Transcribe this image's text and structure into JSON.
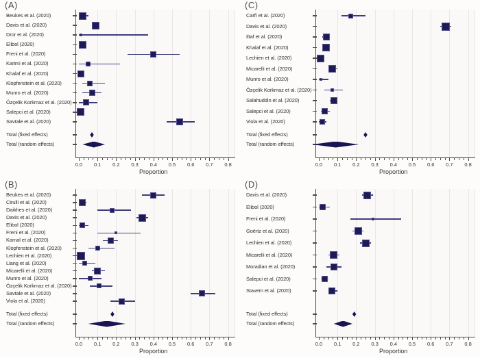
{
  "figure": {
    "kind": "meta-analysis forest plots",
    "panels_order": [
      "(A)",
      "(C)",
      "(B)",
      "(D)"
    ]
  },
  "colors": {
    "marker_fill": "#1d1a55",
    "marker_border": "#55528f",
    "ci_line": "#3e3c7c",
    "diamond": "#171552",
    "axis": "#4d4d4d",
    "gridline": "#e9e6e4",
    "plot_bg": "#fbf9f8",
    "page_bg": "#fdfcfb",
    "text": "#2e2e2e"
  },
  "chart_data": [
    {
      "type": "forest",
      "panel": "(A)",
      "xlabel": "Proportion",
      "xlim": [
        0,
        0.84
      ],
      "xtick_labels": [
        "0.0",
        "0.1",
        "0.2",
        "0.3",
        "0.4",
        "0.5",
        "0.6",
        "0.7",
        "0.8"
      ],
      "grid": true,
      "studies": [
        {
          "name": "Beukes et al. (2020)",
          "est": 0.02,
          "lo": 0.0,
          "hi": 0.05,
          "sq": 11
        },
        {
          "name": "Davis et al. (2020)",
          "est": 0.09,
          "lo": 0.07,
          "hi": 0.11,
          "sq": 11
        },
        {
          "name": "Dror et al. (2020)",
          "est": 0.01,
          "lo": 0.0,
          "hi": 0.37,
          "sq": 4
        },
        {
          "name": "Elibol (2020)",
          "est": 0.02,
          "lo": 0.0,
          "hi": 0.04,
          "sq": 11
        },
        {
          "name": "Freni et al. (2020)",
          "est": 0.4,
          "lo": 0.26,
          "hi": 0.54,
          "sq": 9
        },
        {
          "name": "Karimi et al. (2020)",
          "est": 0.05,
          "lo": 0.0,
          "hi": 0.22,
          "sq": 7
        },
        {
          "name": "Khalaf et al. (2020)",
          "est": 0.01,
          "lo": 0.0,
          "hi": 0.03,
          "sq": 10
        },
        {
          "name": "Klopfenstein et al. (2020)",
          "est": 0.06,
          "lo": 0.02,
          "hi": 0.14,
          "sq": 8
        },
        {
          "name": "Munro et al. (2020)",
          "est": 0.07,
          "lo": 0.02,
          "hi": 0.12,
          "sq": 9
        },
        {
          "name": "Özçelik Korkmaz et al. (2020)",
          "est": 0.04,
          "lo": 0.0,
          "hi": 0.1,
          "sq": 9
        },
        {
          "name": "Salepci et al. (2020)",
          "est": 0.01,
          "lo": 0.0,
          "hi": 0.03,
          "sq": 11
        },
        {
          "name": "Savtale et al. (2020)",
          "est": 0.54,
          "lo": 0.47,
          "hi": 0.62,
          "sq": 10
        }
      ],
      "totals": [
        {
          "name": "Total (fixed effects)",
          "est": 0.07,
          "lo": 0.06,
          "hi": 0.08
        },
        {
          "name": "Total (random effects)",
          "est": 0.08,
          "lo": 0.03,
          "hi": 0.15
        }
      ]
    },
    {
      "type": "forest",
      "panel": "(C)",
      "xlabel": "Proportion",
      "xlim": [
        0,
        0.84
      ],
      "xtick_labels": [
        "0.0",
        "0.1",
        "0.2",
        "0.3",
        "0.4",
        "0.5",
        "0.6",
        "0.7",
        "0.8"
      ],
      "grid": true,
      "studies": [
        {
          "name": "Carfì et al. (2020)",
          "est": 0.17,
          "lo": 0.12,
          "hi": 0.25,
          "sq": 7
        },
        {
          "name": "Davis et al. (2020)",
          "est": 0.68,
          "lo": 0.65,
          "hi": 0.71,
          "sq": 12
        },
        {
          "name": "Iltaf et al. (2020)",
          "est": 0.04,
          "lo": 0.02,
          "hi": 0.06,
          "sq": 10
        },
        {
          "name": "Khalaf et al. (2020)",
          "est": 0.04,
          "lo": 0.02,
          "hi": 0.06,
          "sq": 11
        },
        {
          "name": "Lechien et al. (2020)",
          "est": 0.01,
          "lo": 0.0,
          "hi": 0.03,
          "sq": 11
        },
        {
          "name": "Micarelli et al. (2020)",
          "est": 0.07,
          "lo": 0.05,
          "hi": 0.1,
          "sq": 11
        },
        {
          "name": "Munro et al. (2020)",
          "est": 0.01,
          "lo": 0.0,
          "hi": 0.05,
          "sq": 4
        },
        {
          "name": "Özçelik Korkmaz et al. (2020)",
          "est": 0.07,
          "lo": 0.03,
          "hi": 0.13,
          "sq": 5
        },
        {
          "name": "Salahuddin et al. (2020)",
          "est": 0.08,
          "lo": 0.06,
          "hi": 0.1,
          "sq": 10
        },
        {
          "name": "Salepci et al. (2020)",
          "est": 0.03,
          "lo": 0.01,
          "hi": 0.06,
          "sq": 9
        },
        {
          "name": "Viola et al. (2020)",
          "est": 0.02,
          "lo": 0.0,
          "hi": 0.04,
          "sq": 8
        }
      ],
      "totals": [
        {
          "name": "Total (fixed effects)",
          "est": 0.25,
          "lo": 0.24,
          "hi": 0.26
        },
        {
          "name": "Total (random effects)",
          "est": 0.09,
          "lo": 0.01,
          "hi": 0.26
        }
      ]
    },
    {
      "type": "forest",
      "panel": "(B)",
      "xlabel": "Proportion",
      "xlim": [
        0,
        0.84
      ],
      "xtick_labels": [
        "0.0",
        "0.1",
        "0.2",
        "0.3",
        "0.4",
        "0.5",
        "0.6",
        "0.7",
        "0.8"
      ],
      "grid": true,
      "studies": [
        {
          "name": "Beukes et al. (2020)",
          "est": 0.4,
          "lo": 0.34,
          "hi": 0.46,
          "sq": 9
        },
        {
          "name": "Cirulli et al. (2020)",
          "est": 0.02,
          "lo": 0.01,
          "hi": 0.04,
          "sq": 10
        },
        {
          "name": "Daikhes et al. (2020)",
          "est": 0.18,
          "lo": 0.1,
          "hi": 0.28,
          "sq": 7
        },
        {
          "name": "Davis et al. (2020)",
          "est": 0.34,
          "lo": 0.31,
          "hi": 0.37,
          "sq": 11
        },
        {
          "name": "Elibol (2020)",
          "est": 0.02,
          "lo": 0.0,
          "hi": 0.05,
          "sq": 8
        },
        {
          "name": "Freni et al. (2020)",
          "est": 0.2,
          "lo": 0.1,
          "hi": 0.33,
          "sq": 4
        },
        {
          "name": "Kamal et al. (2020)",
          "est": 0.17,
          "lo": 0.13,
          "hi": 0.21,
          "sq": 9
        },
        {
          "name": "Klopfenstein et al. (2020)",
          "est": 0.1,
          "lo": 0.05,
          "hi": 0.19,
          "sq": 7
        },
        {
          "name": "Lechien et al. (2020)",
          "est": 0.01,
          "lo": 0.0,
          "hi": 0.02,
          "sq": 12
        },
        {
          "name": "Liang et al. (2020)",
          "est": 0.03,
          "lo": 0.0,
          "hi": 0.09,
          "sq": 7
        },
        {
          "name": "Micarelli et al. (2020)",
          "est": 0.1,
          "lo": 0.07,
          "hi": 0.14,
          "sq": 10
        },
        {
          "name": "Munro et al. (2020)",
          "est": 0.06,
          "lo": 0.0,
          "hi": 0.12,
          "sq": 7
        },
        {
          "name": "Özçelik Korkmaz et al. (2020)",
          "est": 0.11,
          "lo": 0.06,
          "hi": 0.18,
          "sq": 7
        },
        {
          "name": "Savtale et al. (2020)",
          "est": 0.66,
          "lo": 0.6,
          "hi": 0.73,
          "sq": 9
        },
        {
          "name": "Viola et al. (2020)",
          "est": 0.23,
          "lo": 0.17,
          "hi": 0.3,
          "sq": 9
        }
      ],
      "totals": [
        {
          "name": "Total (fixed effects)",
          "est": 0.18,
          "lo": 0.17,
          "hi": 0.19
        },
        {
          "name": "Total (random effects)",
          "est": 0.15,
          "lo": 0.06,
          "hi": 0.26
        }
      ]
    },
    {
      "type": "forest",
      "panel": "(D)",
      "xlabel": "Proportion",
      "xlim": [
        0,
        0.84
      ],
      "xtick_labels": [
        "0.0",
        "0.1",
        "0.2",
        "0.3",
        "0.4",
        "0.5",
        "0.6",
        "0.7",
        "0.8"
      ],
      "grid": true,
      "studies": [
        {
          "name": "Davis et al. (2020)",
          "est": 0.26,
          "lo": 0.23,
          "hi": 0.29,
          "sq": 11
        },
        {
          "name": "Elibol (2020)",
          "est": 0.02,
          "lo": 0.0,
          "hi": 0.06,
          "sq": 9
        },
        {
          "name": "Freni et al. (2020)",
          "est": 0.29,
          "lo": 0.17,
          "hi": 0.44,
          "sq": 4
        },
        {
          "name": "Goërtz et al. (2020)",
          "est": 0.21,
          "lo": 0.18,
          "hi": 0.24,
          "sq": 11
        },
        {
          "name": "Lechien et al. (2020)",
          "est": 0.25,
          "lo": 0.22,
          "hi": 0.28,
          "sq": 11
        },
        {
          "name": "Micarelli et al. (2020)",
          "est": 0.08,
          "lo": 0.05,
          "hi": 0.11,
          "sq": 11
        },
        {
          "name": "Moradian et al. (2020)",
          "est": 0.08,
          "lo": 0.04,
          "hi": 0.12,
          "sq": 10
        },
        {
          "name": "Salepci et al. (2020)",
          "est": 0.03,
          "lo": 0.01,
          "hi": 0.05,
          "sq": 9
        },
        {
          "name": "Stavem et al. (2020)",
          "est": 0.07,
          "lo": 0.05,
          "hi": 0.1,
          "sq": 10
        }
      ],
      "totals": [
        {
          "name": "Total (fixed effects)",
          "est": 0.19,
          "lo": 0.18,
          "hi": 0.2
        },
        {
          "name": "Total (random effects)",
          "est": 0.13,
          "lo": 0.08,
          "hi": 0.18
        }
      ]
    }
  ]
}
